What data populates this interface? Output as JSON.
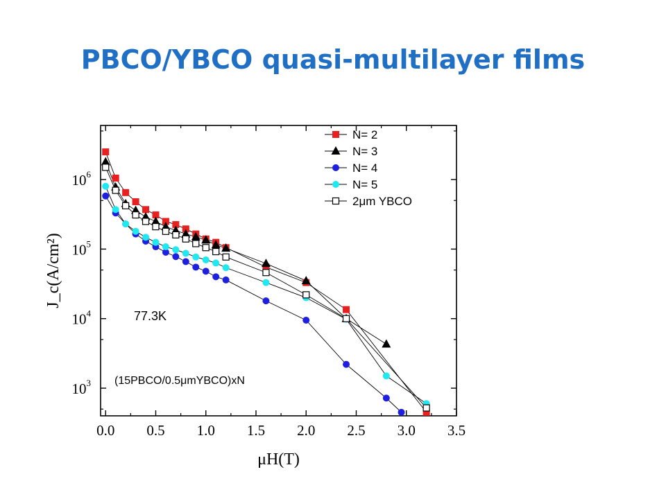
{
  "slide": {
    "title": "PBCO/YBCO quasi-multilayer films"
  },
  "chart_data": {
    "type": "scatter",
    "xlabel": "μH(T)",
    "ylabel": "J_c(A/cm²)",
    "xlim": [
      -0.05,
      3.5
    ],
    "ylim": [
      400,
      6000000
    ],
    "yscale": "log",
    "x_ticks": [
      "0.0",
      "0.5",
      "1.0",
      "1.5",
      "2.0",
      "2.5",
      "3.0",
      "3.5"
    ],
    "y_ticks": [
      {
        "value": 1000,
        "base": "10",
        "exp": "3"
      },
      {
        "value": 10000,
        "base": "10",
        "exp": "4"
      },
      {
        "value": 100000,
        "base": "10",
        "exp": "5"
      },
      {
        "value": 1000000,
        "base": "10",
        "exp": "6"
      }
    ],
    "grid": false,
    "legend_position": "top-right",
    "annotations": [
      "77.3K",
      "(15PBCO/0.5μmYBCO)xN"
    ],
    "series": [
      {
        "name": "N= 2",
        "marker": "square",
        "color": "#E8201F",
        "fill": "#E8201F",
        "x": [
          0,
          0.1,
          0.2,
          0.3,
          0.4,
          0.5,
          0.6,
          0.7,
          0.8,
          0.9,
          1.0,
          1.1,
          1.2,
          1.6,
          2.0,
          2.4,
          3.2
        ],
        "y": [
          2500000,
          1050000,
          650000,
          480000,
          370000,
          310000,
          250000,
          225000,
          195000,
          165000,
          140000,
          125000,
          105000,
          55000,
          33000,
          13500,
          450
        ]
      },
      {
        "name": "N= 3",
        "marker": "triangle",
        "color": "#000000",
        "fill": "#000000",
        "x": [
          0,
          0.1,
          0.2,
          0.3,
          0.4,
          0.5,
          0.6,
          0.7,
          0.8,
          0.9,
          1.0,
          1.1,
          1.2,
          1.6,
          2.0,
          2.4,
          2.8
        ],
        "y": [
          1800000,
          780000,
          450000,
          360000,
          290000,
          250000,
          210000,
          185000,
          165000,
          150000,
          135000,
          115000,
          103000,
          62000,
          35000,
          10000,
          4300
        ]
      },
      {
        "name": "N= 4",
        "marker": "circle",
        "color": "#1F1FE0",
        "fill": "#1F1FE0",
        "x": [
          0,
          0.1,
          0.2,
          0.3,
          0.4,
          0.5,
          0.6,
          0.7,
          0.8,
          0.9,
          1.0,
          1.1,
          1.2,
          1.6,
          2.0,
          2.4,
          2.8,
          2.95
        ],
        "y": [
          580000,
          330000,
          230000,
          165000,
          130000,
          108000,
          90000,
          78000,
          66000,
          55000,
          48000,
          40000,
          36000,
          18000,
          9500,
          2200,
          720,
          450
        ]
      },
      {
        "name": "N= 5",
        "marker": "circle",
        "color": "#1FE8F0",
        "fill": "#1FE8F0",
        "x": [
          0,
          0.1,
          0.2,
          0.3,
          0.4,
          0.5,
          0.6,
          0.7,
          0.8,
          0.9,
          1.0,
          1.1,
          1.2,
          1.6,
          2.0,
          2.4,
          2.8,
          3.2
        ],
        "y": [
          800000,
          370000,
          230000,
          180000,
          148000,
          125000,
          108000,
          98000,
          87000,
          77000,
          70000,
          63000,
          54000,
          33000,
          20000,
          9800,
          1500,
          600
        ]
      },
      {
        "name": "2μm YBCO",
        "marker": "square-open",
        "color": "#000000",
        "fill": "#ffffff",
        "x": [
          0,
          0.1,
          0.2,
          0.3,
          0.4,
          0.5,
          0.6,
          0.7,
          0.8,
          0.9,
          1.0,
          1.1,
          1.2,
          1.6,
          2.0,
          2.4,
          3.2
        ],
        "y": [
          1500000,
          700000,
          420000,
          310000,
          250000,
          210000,
          180000,
          160000,
          140000,
          120000,
          105000,
          92000,
          77000,
          46000,
          22000,
          10000,
          520
        ]
      }
    ]
  }
}
